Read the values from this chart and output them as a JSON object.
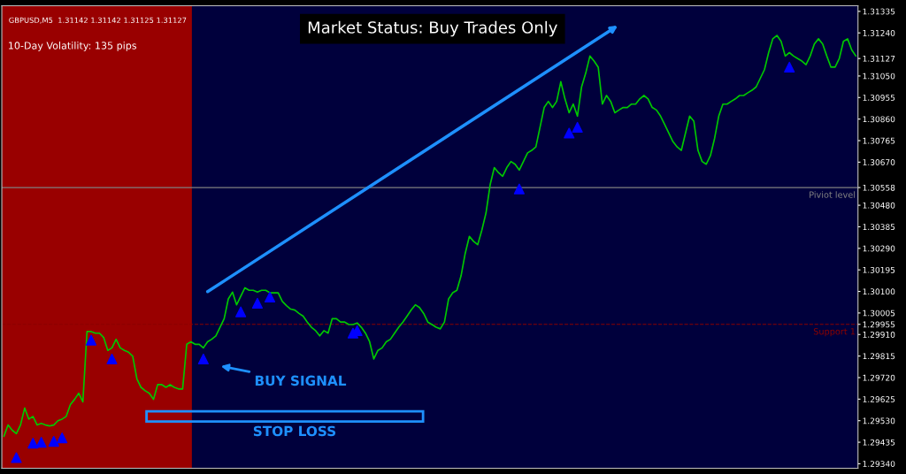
{
  "chart_data": {
    "type": "line",
    "title": "GBPUSD,M5  1.31142 1.31142 1.31125 1.31127",
    "annotations": [
      "10-Day Volatility: 135 pips",
      "Market Status: Buy Trades Only",
      "BUY SIGNAL",
      "STOP LOSS"
    ],
    "categories": [
      null,
      null,
      null,
      null,
      null,
      null,
      null,
      null,
      null,
      null,
      null,
      null,
      null,
      null,
      null,
      null,
      null,
      null,
      null,
      null,
      null,
      null,
      null,
      null,
      null,
      null,
      null,
      null,
      null,
      null,
      null,
      null,
      null,
      null,
      null,
      null,
      null,
      null,
      null,
      null,
      null,
      null,
      null,
      null,
      null,
      null,
      null,
      null,
      null,
      null,
      null,
      null,
      null,
      null,
      null,
      null,
      null,
      null,
      null,
      null,
      null,
      null,
      null,
      null,
      null,
      null,
      null,
      null,
      null,
      null,
      null,
      null,
      null,
      null,
      null,
      null,
      null,
      null,
      null,
      null,
      null,
      null,
      null,
      null,
      null,
      null,
      null,
      null,
      null,
      null,
      null,
      null,
      null,
      null,
      null,
      null,
      null,
      null,
      null,
      null,
      null,
      null,
      null,
      null,
      null,
      null,
      null,
      null,
      null,
      null,
      null,
      null,
      null,
      null,
      null,
      null,
      null,
      null,
      null,
      null,
      null,
      null,
      null,
      null,
      null,
      null,
      null,
      null,
      null,
      null,
      null,
      null,
      null,
      null,
      null,
      null,
      null,
      null,
      null,
      null,
      null,
      null,
      null,
      null,
      null,
      null,
      null,
      null,
      null,
      null,
      null,
      null,
      null,
      null,
      null,
      null,
      null,
      null,
      null,
      null,
      null,
      null,
      null,
      null,
      null,
      null,
      null,
      null,
      null,
      null,
      null,
      null,
      null,
      null,
      null,
      null,
      null,
      null,
      null,
      null,
      null,
      null,
      null,
      null,
      null,
      null,
      null,
      null,
      null,
      null,
      null,
      null,
      null,
      null,
      null,
      null,
      null,
      null,
      null,
      null,
      null,
      null,
      null,
      null,
      null,
      null
    ],
    "series": [
      {
        "color": "#00c800",
        "values": [
          1.29461,
          1.29511,
          1.29488,
          1.29473,
          1.29511,
          1.29586,
          1.29537,
          1.29549,
          1.29511,
          1.29518,
          1.29511,
          1.29507,
          1.29511,
          1.2953,
          1.29537,
          1.29549,
          1.29601,
          1.29624,
          1.29651,
          1.29613,
          1.29923,
          1.29923,
          1.29916,
          1.29916,
          1.29897,
          1.2984,
          1.29851,
          1.29889,
          1.29851,
          1.2984,
          1.29832,
          1.29814,
          1.29715,
          1.29677,
          1.29662,
          1.29651,
          1.29624,
          1.29689,
          1.29689,
          1.29677,
          1.29689,
          1.29677,
          1.2967,
          1.2967,
          1.29867,
          1.29878,
          1.29867,
          1.29867,
          1.29851,
          1.29878,
          1.29889,
          1.29904,
          1.29942,
          1.2998,
          1.30067,
          1.30097,
          1.30041,
          1.30079,
          1.30116,
          1.30105,
          1.30105,
          1.30097,
          1.30105,
          1.30105,
          1.30094,
          1.30094,
          1.30094,
          1.30056,
          1.30037,
          1.30022,
          1.30018,
          1.30003,
          1.29991,
          1.29965,
          1.29942,
          1.29927,
          1.29904,
          1.29927,
          1.29916,
          1.2998,
          1.2998,
          1.29965,
          1.29965,
          1.29954,
          1.29954,
          1.29961,
          1.29942,
          1.29916,
          1.29878,
          1.29802,
          1.2984,
          1.29851,
          1.29878,
          1.29889,
          1.29916,
          1.29942,
          1.29965,
          1.29991,
          1.30018,
          1.30041,
          1.30029,
          1.30003,
          1.29965,
          1.29954,
          1.29942,
          1.29935,
          1.29965,
          1.30067,
          1.30094,
          1.30105,
          1.30169,
          1.30268,
          1.30343,
          1.30321,
          1.30306,
          1.3037,
          1.30446,
          1.30571,
          1.30646,
          1.30624,
          1.30608,
          1.30646,
          1.30673,
          1.30661,
          1.30635,
          1.30673,
          1.30711,
          1.30722,
          1.30737,
          1.30824,
          1.30911,
          1.30938,
          1.30911,
          1.30938,
          1.31025,
          1.30949,
          1.30888,
          1.30926,
          1.30873,
          1.31002,
          1.31063,
          1.31138,
          1.31116,
          1.31089,
          1.30926,
          1.30964,
          1.30938,
          1.30888,
          1.309,
          1.30911,
          1.30911,
          1.30926,
          1.30926,
          1.30949,
          1.30964,
          1.30949,
          1.30911,
          1.309,
          1.30873,
          1.30836,
          1.30798,
          1.3076,
          1.30737,
          1.30722,
          1.30798,
          1.30873,
          1.30851,
          1.30722,
          1.30673,
          1.30661,
          1.30699,
          1.30775,
          1.30873,
          1.30926,
          1.30926,
          1.30938,
          1.30949,
          1.30964,
          1.30964,
          1.30976,
          1.30987,
          1.31002,
          1.3104,
          1.31078,
          1.31153,
          1.31214,
          1.31229,
          1.31203,
          1.31138,
          1.31153,
          1.31138,
          1.31127,
          1.31116,
          1.311,
          1.31138,
          1.31191,
          1.31214,
          1.31191,
          1.31138,
          1.31089,
          1.31089,
          1.31127,
          1.31203,
          1.31214,
          1.31165,
          1.31138
        ]
      },
      {
        "type": "scatter",
        "color": "#0000ff",
        "marker": "triangle",
        "values": [
          null,
          null,
          null,
          1.29367,
          null,
          null,
          null,
          1.29431,
          null,
          1.29435,
          null,
          null,
          1.29439,
          null,
          1.29454,
          null,
          null,
          null,
          null,
          null,
          null,
          1.29885,
          null,
          null,
          null,
          null,
          1.29802,
          null,
          null,
          null,
          null,
          null,
          null,
          null,
          null,
          null,
          null,
          null,
          null,
          null,
          null,
          null,
          null,
          null,
          null,
          null,
          null,
          null,
          1.29802,
          null,
          null,
          null,
          null,
          null,
          null,
          null,
          null,
          1.3001,
          null,
          null,
          null,
          1.30048,
          null,
          null,
          1.30075,
          null,
          null,
          null,
          null,
          null,
          null,
          null,
          null,
          null,
          null,
          null,
          null,
          null,
          null,
          null,
          null,
          null,
          null,
          null,
          1.29916,
          1.29927,
          null,
          null,
          null,
          null,
          null,
          null,
          null,
          null,
          null,
          null,
          null,
          null,
          null,
          null,
          null,
          null,
          null,
          null,
          null,
          null,
          null,
          null,
          null,
          null,
          null,
          null,
          null,
          null,
          null,
          null,
          null,
          null,
          null,
          null,
          null,
          null,
          null,
          null,
          1.30552,
          null,
          null,
          null,
          null,
          null,
          null,
          null,
          null,
          null,
          null,
          null,
          1.30798,
          null,
          1.30824,
          null,
          null,
          null,
          null,
          null,
          null,
          null,
          null,
          null,
          null,
          null,
          null,
          null,
          null,
          null,
          null,
          null,
          null,
          null,
          null,
          null,
          null,
          null,
          null,
          null,
          null,
          null,
          null,
          null,
          null,
          null,
          null,
          null,
          null,
          null,
          null,
          null,
          null,
          null,
          null,
          null,
          null,
          null,
          null,
          null,
          null,
          null,
          null,
          null,
          null,
          1.31089,
          null,
          null,
          null,
          null,
          null,
          null,
          null,
          null,
          null,
          null,
          null,
          null,
          null,
          null,
          null,
          null
        ]
      }
    ],
    "ylim": [
      1.2932,
      1.3136
    ],
    "yticks": [
      1.31335,
      {
        "value": 1.3124,
        "label": "1.31240"
      },
      {
        "value": 1.31127,
        "label": "1.31127"
      },
      {
        "value": 1.3105,
        "label": "1.31050"
      },
      1.30955,
      {
        "value": 1.3086,
        "label": "1.30860"
      },
      1.30765,
      {
        "value": 1.3067,
        "label": "1.30670"
      },
      {
        "value": 1.30558,
        "label": "1.30558"
      },
      {
        "value": 1.3048,
        "label": "1.30480"
      },
      1.30385,
      {
        "value": 1.3029,
        "label": "1.30290"
      },
      1.30195,
      {
        "value": 1.301,
        "label": "1.30100"
      },
      1.30005,
      {
        "value": 1.29955,
        "label": "1.29955"
      },
      {
        "value": 1.2991,
        "label": "1.29910"
      },
      1.29815,
      {
        "value": 1.2972,
        "label": "1.29720"
      },
      1.29625,
      {
        "value": 1.2953,
        "label": "1.29530"
      },
      1.29435,
      {
        "value": 1.2934,
        "label": "1.29340"
      }
    ],
    "ref_lines": [
      {
        "axis": "y",
        "value": 1.30558,
        "label": "Piviot level",
        "color": "#808080",
        "line_style": "solid"
      },
      {
        "axis": "y",
        "value": 1.29955,
        "label": "Support 1",
        "color": "#8b0000",
        "line_style": "dashed"
      }
    ],
    "tick_labels": "y",
    "grid": false,
    "legend": false
  }
}
